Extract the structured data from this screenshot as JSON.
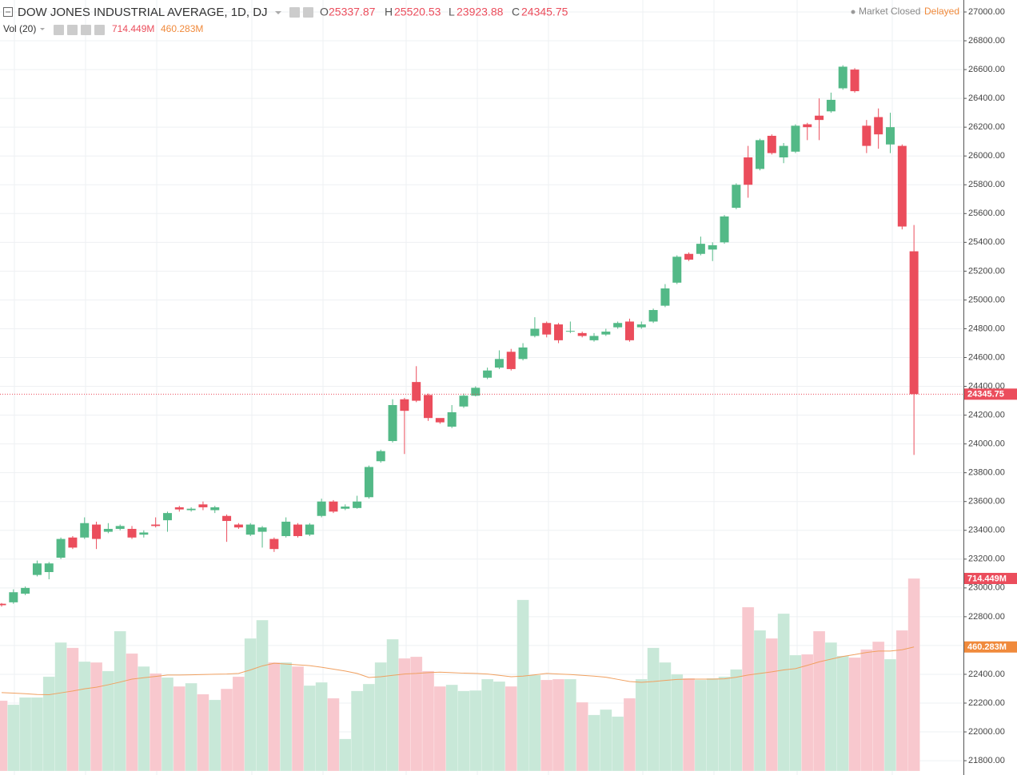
{
  "chart_data": {
    "type": "candlestick",
    "title": "DOW JONES INDUSTRIAL AVERAGE, 1D, DJ",
    "ohlc_letters": [
      "O",
      "H",
      "L",
      "C"
    ],
    "status": "Market Closed",
    "feed": "Delayed",
    "up_color": "#53b987",
    "down_color": "#eb4d5c",
    "ylim": [
      21728.4,
      27083.2
    ],
    "yticks": [
      {
        "value": 21800,
        "label": "21800.00"
      },
      {
        "value": 22000,
        "label": "22000.00"
      },
      {
        "value": 22200,
        "label": "22200.00"
      },
      {
        "value": 22400,
        "label": "22400.00"
      },
      {
        "value": 22600,
        "label": "22600.00"
      },
      {
        "value": 22800,
        "label": "22800.00"
      },
      {
        "value": 23000,
        "label": "23000.00"
      },
      {
        "value": 23200,
        "label": "23200.00"
      },
      {
        "value": 23400,
        "label": "23400.00"
      },
      {
        "value": 23600,
        "label": "23600.00"
      },
      {
        "value": 23800,
        "label": "23800.00"
      },
      {
        "value": 24000,
        "label": "24000.00"
      },
      {
        "value": 24200,
        "label": "24200.00"
      },
      {
        "value": 24400,
        "label": "24400.00"
      },
      {
        "value": 24600,
        "label": "24600.00"
      },
      {
        "value": 24800,
        "label": "24800.00"
      },
      {
        "value": 25000,
        "label": "25000.00"
      },
      {
        "value": 25200,
        "label": "25200.00"
      },
      {
        "value": 25400,
        "label": "25400.00"
      },
      {
        "value": 25600,
        "label": "25600.00"
      },
      {
        "value": 25800,
        "label": "25800.00"
      },
      {
        "value": 26000,
        "label": "26000.00"
      },
      {
        "value": 26200,
        "label": "26200.00"
      },
      {
        "value": 26400,
        "label": "26400.00"
      },
      {
        "value": 26600,
        "label": "26600.00"
      },
      {
        "value": 26800,
        "label": "26800.00"
      },
      {
        "value": 27000,
        "label": "27000.00"
      }
    ],
    "grid": true,
    "open": [
      22890,
      22900,
      22960,
      23090,
      23110,
      23210,
      23350,
      23350,
      23440,
      23390,
      23410,
      23410,
      23370,
      23440,
      23470,
      23560,
      23540,
      23580,
      23540,
      23500,
      23440,
      23370,
      23390,
      23340,
      23360,
      23440,
      23370,
      23500,
      23600,
      23550,
      23555,
      23630,
      23880,
      24020,
      24310,
      24430,
      24340,
      24180,
      24120,
      24260,
      24335,
      24460,
      24530,
      24640,
      24590,
      24750,
      24840,
      24830,
      24780,
      24770,
      24720,
      24760,
      24810,
      24850,
      24810,
      24850,
      24960,
      25120,
      25320,
      25320,
      25350,
      25400,
      25640,
      25990,
      25910,
      26140,
      25990,
      26030,
      26220,
      26280,
      26310,
      26470,
      26600,
      26210,
      26270,
      26080,
      26070,
      25337.87
    ],
    "high": [
      22895,
      22990,
      23010,
      23190,
      23180,
      23350,
      23360,
      23490,
      23460,
      23450,
      23440,
      23430,
      23400,
      23490,
      23530,
      23570,
      23560,
      23600,
      23570,
      23510,
      23450,
      23450,
      23430,
      23350,
      23490,
      23450,
      23450,
      23620,
      23610,
      23580,
      23640,
      23850,
      23960,
      24310,
      24320,
      24540,
      24350,
      24170,
      24270,
      24350,
      24400,
      24530,
      24650,
      24660,
      24700,
      24880,
      24850,
      24840,
      24850,
      24780,
      24770,
      24800,
      24850,
      24870,
      24850,
      24940,
      25110,
      25310,
      25330,
      25440,
      25400,
      25590,
      25810,
      26070,
      26120,
      26150,
      26090,
      26220,
      26230,
      26400,
      26440,
      26630,
      26610,
      26250,
      26330,
      26300,
      26080,
      25520.53
    ],
    "low": [
      22870,
      22890,
      22950,
      23080,
      23060,
      23200,
      23270,
      23340,
      23270,
      23380,
      23400,
      23340,
      23350,
      23420,
      23390,
      23530,
      23530,
      23540,
      23520,
      23320,
      23410,
      23360,
      23280,
      23250,
      23350,
      23350,
      23360,
      23490,
      23520,
      23540,
      23550,
      23620,
      23870,
      24010,
      23930,
      24290,
      24160,
      24140,
      24110,
      24250,
      24330,
      24450,
      24520,
      24510,
      24580,
      24740,
      24740,
      24700,
      24770,
      24740,
      24710,
      24750,
      24800,
      24710,
      24800,
      24840,
      24950,
      25110,
      25270,
      25310,
      25270,
      25390,
      25630,
      25710,
      25900,
      26010,
      25950,
      26020,
      26110,
      26110,
      26300,
      26460,
      26440,
      26020,
      26050,
      26020,
      25490,
      23923.88
    ],
    "close": [
      22880,
      22970,
      23000,
      23170,
      23170,
      23340,
      23280,
      23450,
      23340,
      23410,
      23430,
      23350,
      23385,
      23430,
      23520,
      23545,
      23550,
      23560,
      23560,
      23465,
      23420,
      23440,
      23420,
      23270,
      23460,
      23360,
      23440,
      23600,
      23530,
      23565,
      23600,
      23840,
      23950,
      24270,
      24230,
      24300,
      24180,
      24150,
      24220,
      24335,
      24390,
      24510,
      24590,
      24520,
      24670,
      24800,
      24760,
      24720,
      24785,
      24750,
      24750,
      24780,
      24840,
      24720,
      24830,
      24930,
      25080,
      25300,
      25280,
      25390,
      25380,
      25580,
      25800,
      25800,
      26110,
      26020,
      26070,
      26210,
      26200,
      26250,
      26390,
      26620,
      26450,
      26070,
      26150,
      26200,
      25510,
      24345.75
    ],
    "volume": {
      "name": "Vol (20)",
      "up_color": "#c8e8d8",
      "down_color": "#f8c8ce",
      "lim": [
        0,
        2861
      ],
      "values": [
        261,
        246,
        273,
        273,
        350,
        477,
        457,
        406,
        403,
        371,
        519,
        436,
        388,
        362,
        347,
        314,
        326,
        285,
        264,
        305,
        350,
        492,
        560,
        403,
        403,
        388,
        317,
        329,
        270,
        119,
        297,
        323,
        403,
        489,
        418,
        424,
        371,
        314,
        320,
        297,
        299,
        341,
        332,
        314,
        635,
        356,
        338,
        341,
        341,
        255,
        208,
        228,
        202,
        270,
        341,
        457,
        403,
        359,
        344,
        338,
        344,
        350,
        377,
        608,
        522,
        492,
        584,
        430,
        433,
        519,
        477,
        427,
        421,
        451,
        480,
        415,
        522,
        714.449
      ],
      "value_labels": [
        null,
        null,
        null,
        null,
        null,
        null,
        null,
        null,
        null,
        null,
        null,
        null,
        null,
        null,
        null,
        null,
        null,
        null,
        null,
        null,
        null,
        null,
        null,
        null,
        null,
        null,
        null,
        null,
        null,
        null,
        null,
        null,
        null,
        null,
        null,
        null,
        null,
        null,
        null,
        null,
        null,
        null,
        null,
        null,
        null,
        null,
        null,
        null,
        null,
        null,
        null,
        null,
        null,
        null,
        null,
        null,
        null,
        null,
        null,
        null,
        null,
        null,
        null,
        null,
        null,
        null,
        null,
        null,
        null,
        null,
        null,
        null,
        null,
        null,
        null,
        null,
        null,
        "714.449M"
      ]
    },
    "volume_ma": {
      "color": "#f0a060",
      "values": [
        291,
        289,
        287,
        284,
        283,
        290,
        297,
        305,
        311,
        320,
        330,
        341,
        346,
        351,
        356,
        356,
        357,
        358,
        359,
        360,
        362,
        375,
        390,
        400,
        397,
        394,
        391,
        385,
        378,
        371,
        362,
        347,
        350,
        355,
        360,
        362,
        365,
        367,
        365,
        363,
        362,
        360,
        355,
        350,
        352,
        357,
        362,
        360,
        358,
        355,
        352,
        348,
        340,
        332,
        329,
        332,
        336,
        340,
        341,
        341,
        341,
        342,
        348,
        356,
        362,
        368,
        375,
        380,
        392,
        405,
        415,
        425,
        432,
        440,
        445,
        445,
        450,
        460.283
      ],
      "value_labels": [
        null,
        null,
        null,
        null,
        null,
        null,
        null,
        null,
        null,
        null,
        null,
        null,
        null,
        null,
        null,
        null,
        null,
        null,
        null,
        null,
        null,
        null,
        null,
        null,
        null,
        null,
        null,
        null,
        null,
        null,
        null,
        null,
        null,
        null,
        null,
        null,
        null,
        null,
        null,
        null,
        null,
        null,
        null,
        null,
        null,
        null,
        null,
        null,
        null,
        null,
        null,
        null,
        null,
        null,
        null,
        null,
        null,
        null,
        null,
        null,
        null,
        null,
        null,
        null,
        null,
        null,
        null,
        null,
        null,
        null,
        null,
        null,
        null,
        null,
        null,
        null,
        null,
        "460.283M"
      ]
    }
  }
}
